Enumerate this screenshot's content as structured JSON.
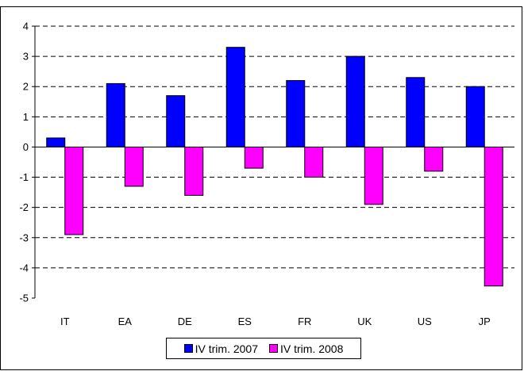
{
  "chart_data": {
    "type": "bar",
    "title": "",
    "xlabel": "",
    "ylabel": "",
    "categories": [
      "IT",
      "EA",
      "DE",
      "ES",
      "FR",
      "UK",
      "US",
      "JP"
    ],
    "series": [
      {
        "name": "IV trim. 2007",
        "color": "#0000ff",
        "values": [
          0.3,
          2.1,
          1.7,
          3.3,
          2.2,
          3.0,
          2.3,
          2.0
        ]
      },
      {
        "name": "IV trim. 2008",
        "color": "#ff00ff",
        "values": [
          -2.9,
          -1.3,
          -1.6,
          -0.7,
          -1.0,
          -1.9,
          -0.8,
          -4.6
        ]
      }
    ],
    "ylim": [
      -5,
      4
    ],
    "yticks": [
      4,
      3,
      2,
      1,
      0,
      -1,
      -2,
      -3,
      -4,
      -5
    ],
    "grid": "dashed horizontal",
    "legend_position": "bottom"
  }
}
